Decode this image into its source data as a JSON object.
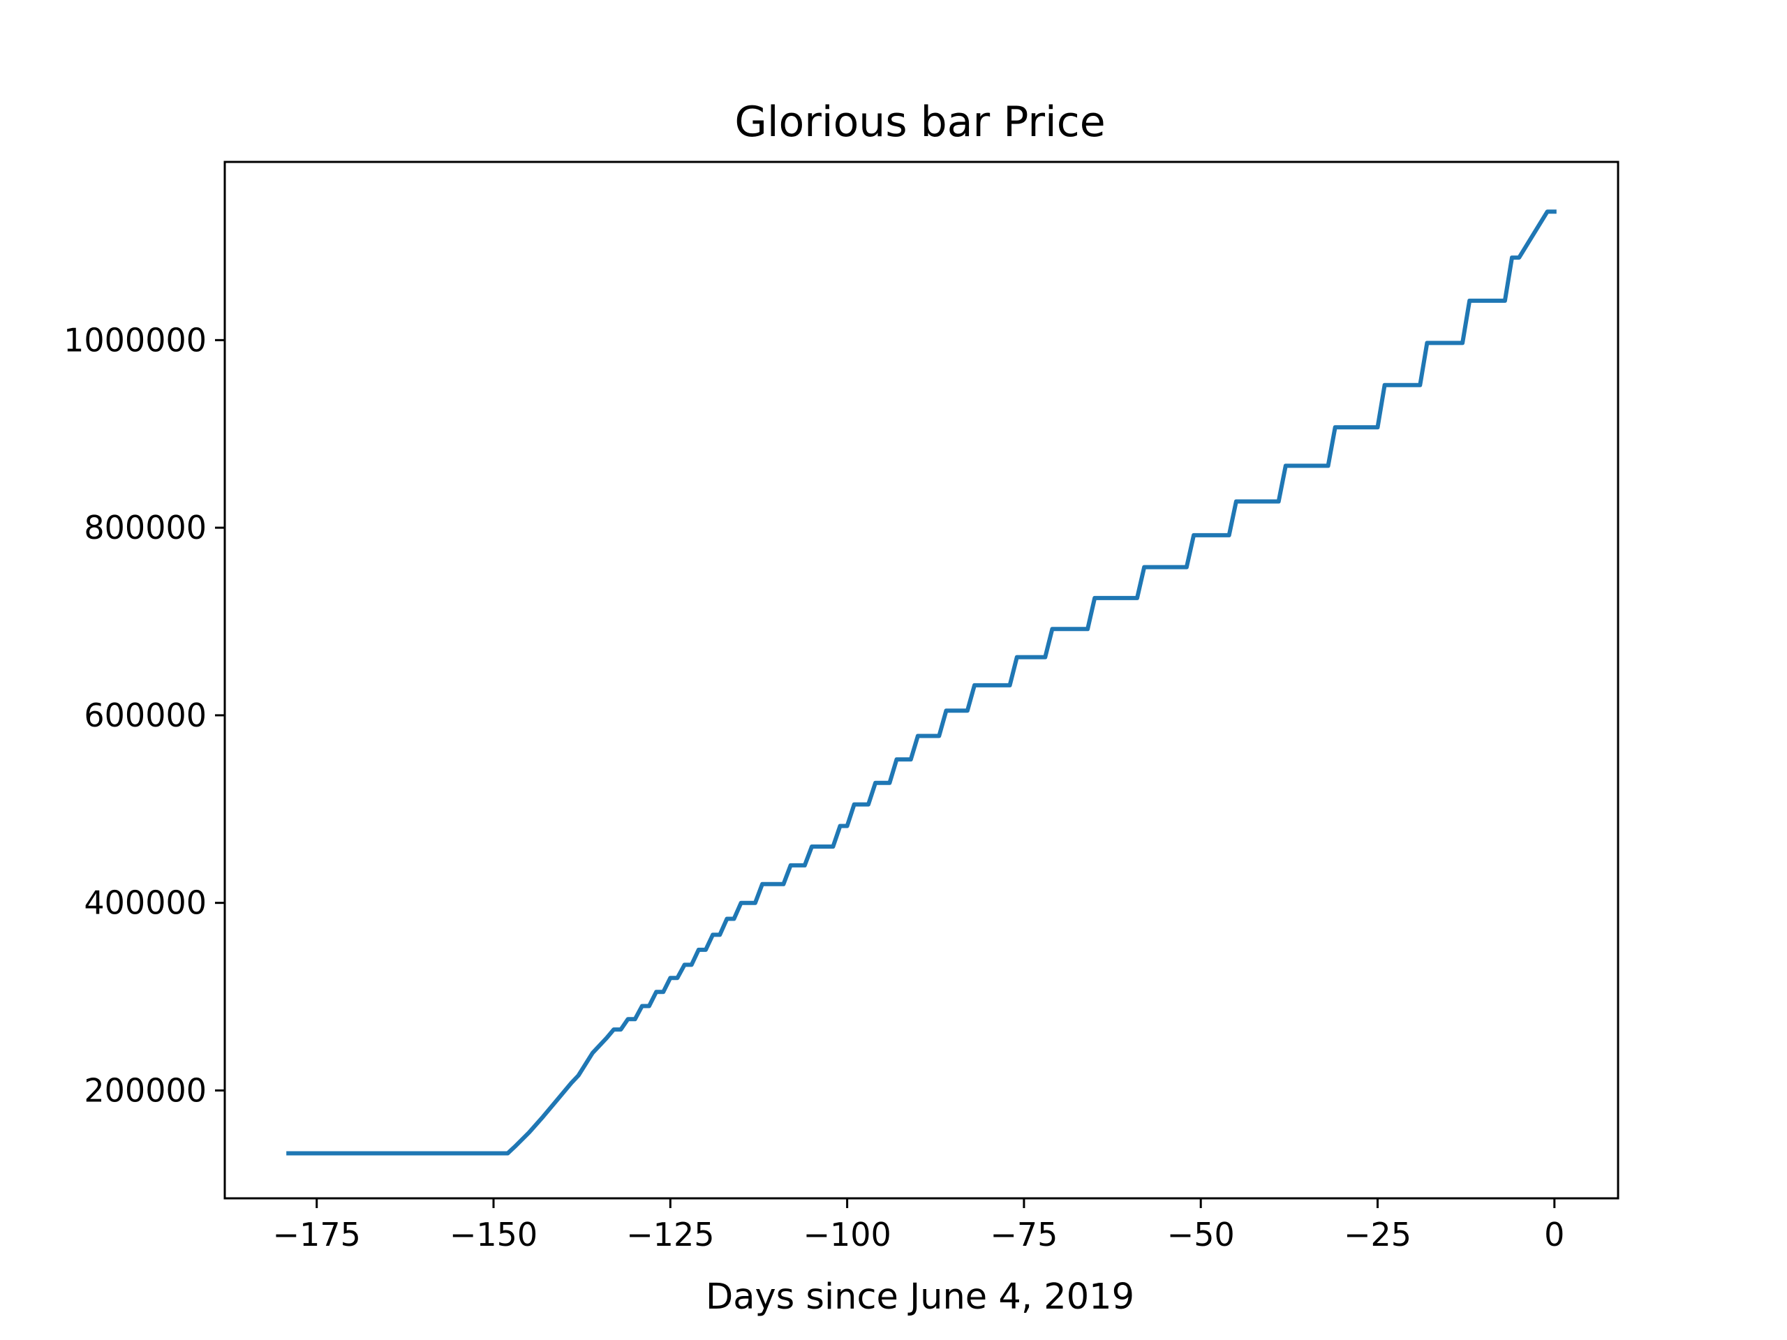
{
  "chart_data": {
    "type": "line",
    "title": "Glorious bar Price",
    "xlabel": "Days since June 4, 2019",
    "ylabel": "",
    "xlim": [
      -188,
      9
    ],
    "ylim": [
      85000,
      1190000
    ],
    "xticks": [
      -175,
      -150,
      -125,
      -100,
      -75,
      -50,
      -25,
      0
    ],
    "xtick_labels": [
      "−175",
      "−150",
      "−125",
      "−100",
      "−75",
      "−50",
      "−25",
      "0"
    ],
    "yticks": [
      200000,
      400000,
      600000,
      800000,
      1000000
    ],
    "ytick_labels": [
      "200000",
      "400000",
      "600000",
      "800000",
      "1000000"
    ],
    "grid": false,
    "legend": null,
    "series": [
      {
        "color": "#1f77b4",
        "x": [
          -179,
          -148,
          -147,
          -145,
          -143,
          -141,
          -139,
          -138,
          -136,
          -134,
          -133,
          -132,
          -131,
          -130,
          -129,
          -128,
          -127,
          -126,
          -125,
          -124,
          -123,
          -122,
          -121,
          -120,
          -119,
          -118,
          -117,
          -116,
          -115,
          -114,
          -113,
          -112,
          -111,
          -110,
          -109,
          -108,
          -107,
          -106,
          -105,
          -104,
          -103,
          -102,
          -101,
          -100,
          -99,
          -98,
          -97,
          -96,
          -95,
          -94,
          -93,
          -92,
          -91,
          -90,
          -89,
          -88,
          -87,
          -86,
          -85,
          -84,
          -83,
          -82,
          -81,
          -80,
          -79,
          -77,
          -76,
          -75,
          -74,
          -72,
          -71,
          -70,
          -69,
          -66,
          -65,
          -64,
          -59,
          -58,
          -57,
          -52,
          -51,
          -50,
          -46,
          -45,
          -44,
          -39,
          -38,
          -37,
          -32,
          -31,
          -30,
          -25,
          -24,
          -23,
          -19,
          -18,
          -17,
          -13,
          -12,
          -11,
          -7,
          -6,
          -5,
          -1,
          0
        ],
        "y": [
          133000,
          133000,
          140000,
          155000,
          172000,
          190000,
          208000,
          216000,
          240000,
          256000,
          265000,
          265000,
          276000,
          276000,
          290000,
          290000,
          305000,
          305000,
          320000,
          320000,
          334000,
          334000,
          350000,
          350000,
          366000,
          366000,
          383000,
          383000,
          400000,
          400000,
          400000,
          420000,
          420000,
          420000,
          420000,
          440000,
          440000,
          440000,
          460000,
          460000,
          460000,
          460000,
          482000,
          482000,
          505000,
          505000,
          505000,
          528000,
          528000,
          528000,
          553000,
          553000,
          553000,
          578000,
          578000,
          578000,
          578000,
          605000,
          605000,
          605000,
          605000,
          632000,
          632000,
          632000,
          632000,
          632000,
          662000,
          662000,
          662000,
          662000,
          692000,
          692000,
          692000,
          692000,
          725000,
          725000,
          725000,
          758000,
          758000,
          758000,
          792000,
          792000,
          792000,
          828000,
          828000,
          828000,
          866000,
          866000,
          866000,
          907000,
          907000,
          907000,
          952000,
          952000,
          952000,
          997000,
          997000,
          997000,
          1042000,
          1042000,
          1042000,
          1088000,
          1088000,
          1137000,
          1137000
        ]
      }
    ]
  }
}
